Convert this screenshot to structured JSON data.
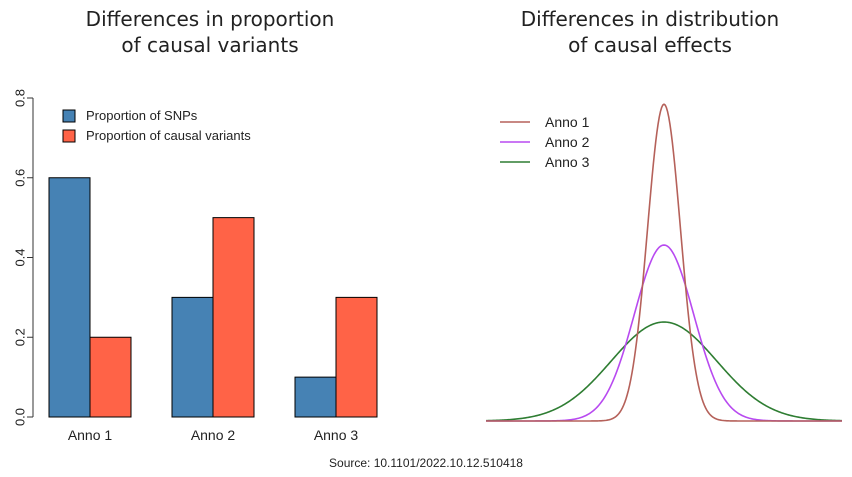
{
  "titles": {
    "left_line1": "Differences in proportion",
    "left_line2": "of causal variants",
    "right_line1": "Differences in distribution",
    "right_line2": "of causal effects"
  },
  "source": "Source: 10.1101/2022.10.12.510418",
  "chart_data": [
    {
      "type": "bar",
      "title": "Differences in proportion of causal variants",
      "categories": [
        "Anno 1",
        "Anno 2",
        "Anno 3"
      ],
      "series": [
        {
          "name": "Proportion of SNPs",
          "values": [
            0.6,
            0.3,
            0.1
          ],
          "color": "#4682b4"
        },
        {
          "name": "Proportion of causal variants",
          "values": [
            0.2,
            0.5,
            0.3
          ],
          "color": "#ff6347"
        }
      ],
      "ylim": [
        0,
        0.8
      ],
      "yticks": [
        0.0,
        0.2,
        0.4,
        0.6,
        0.8
      ],
      "ytick_labels": [
        "0.0",
        "0.2",
        "0.4",
        "0.6",
        "0.8"
      ],
      "grid": false,
      "legend": "top-left"
    },
    {
      "type": "line",
      "title": "Differences in distribution of causal effects",
      "series": [
        {
          "name": "Anno 1",
          "distribution": "normal",
          "mean": 0,
          "sd": 0.5,
          "color": "#b5615a"
        },
        {
          "name": "Anno 2",
          "distribution": "normal",
          "mean": 0,
          "sd": 0.9,
          "color": "#b84af0"
        },
        {
          "name": "Anno 3",
          "distribution": "normal",
          "mean": 0,
          "sd": 1.6,
          "color": "#2e7d32"
        }
      ],
      "xlim": [
        -5.4,
        5.4
      ],
      "axes_shown": false,
      "legend": "top-left"
    }
  ]
}
